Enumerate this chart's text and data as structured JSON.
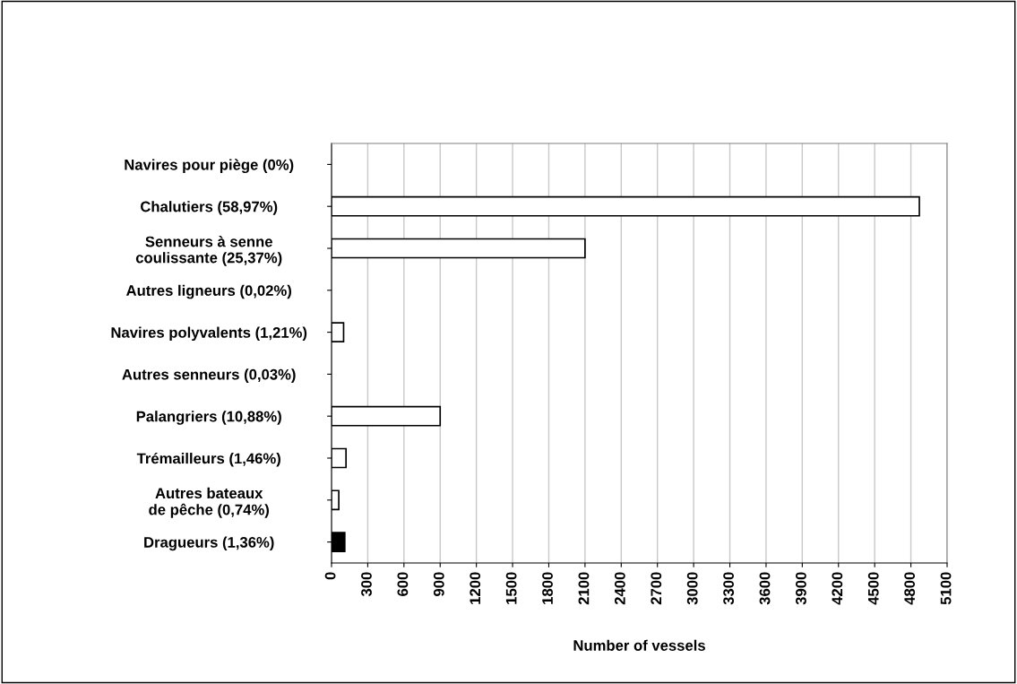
{
  "chart_data": {
    "type": "bar",
    "orientation": "horizontal",
    "xlabel": "Number of vessels",
    "categories": [
      "Navires pour piège (0%)",
      "Chalutiers (58,97%)",
      "Senneurs à senne\ncoulissante (25,37%)",
      "Autres ligneurs (0,02%)",
      "Navires polyvalents (1,21%)",
      "Autres senneurs (0,03%)",
      "Palangriers (10,88%)",
      "Trémailleurs (1,46%)",
      "Autres bateaux\nde pêche (0,74%)",
      "Dragueurs (1,36%)"
    ],
    "values": [
      0,
      4870,
      2100,
      null,
      100,
      null,
      900,
      120,
      60,
      110
    ],
    "colors": [
      "#ffffff",
      "#ffffff",
      "#ffffff",
      "#ffffff",
      "#ffffff",
      "#ffffff",
      "#ffffff",
      "#ffffff",
      "#ffffff",
      "#000000"
    ],
    "xlim": [
      0,
      5100
    ],
    "xticks": [
      0,
      300,
      600,
      900,
      1200,
      1500,
      1800,
      2100,
      2400,
      2700,
      3000,
      3300,
      3600,
      3900,
      4200,
      4500,
      4800,
      5100
    ],
    "grid": "x",
    "legend": false
  }
}
